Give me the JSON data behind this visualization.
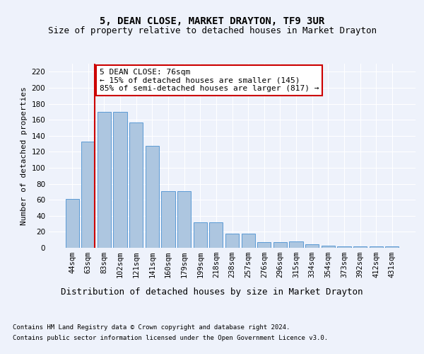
{
  "title": "5, DEAN CLOSE, MARKET DRAYTON, TF9 3UR",
  "subtitle": "Size of property relative to detached houses in Market Drayton",
  "xlabel": "Distribution of detached houses by size in Market Drayton",
  "ylabel": "Number of detached properties",
  "categories": [
    "44sqm",
    "63sqm",
    "83sqm",
    "102sqm",
    "121sqm",
    "141sqm",
    "160sqm",
    "179sqm",
    "199sqm",
    "218sqm",
    "238sqm",
    "257sqm",
    "276sqm",
    "296sqm",
    "315sqm",
    "334sqm",
    "354sqm",
    "373sqm",
    "392sqm",
    "412sqm",
    "431sqm"
  ],
  "values": [
    61,
    133,
    170,
    170,
    157,
    127,
    71,
    71,
    32,
    32,
    18,
    18,
    7,
    7,
    8,
    4,
    3,
    2,
    2,
    2,
    2
  ],
  "bar_color": "#adc6e0",
  "bar_edge_color": "#5b9bd5",
  "vline_color": "#cc0000",
  "annotation_text": "5 DEAN CLOSE: 76sqm\n← 15% of detached houses are smaller (145)\n85% of semi-detached houses are larger (817) →",
  "annotation_box_color": "#ffffff",
  "annotation_box_edge_color": "#cc0000",
  "ylim": [
    0,
    230
  ],
  "yticks": [
    0,
    20,
    40,
    60,
    80,
    100,
    120,
    140,
    160,
    180,
    200,
    220
  ],
  "bg_color": "#eef2fb",
  "plot_bg_color": "#eef2fb",
  "footer_line1": "Contains HM Land Registry data © Crown copyright and database right 2024.",
  "footer_line2": "Contains public sector information licensed under the Open Government Licence v3.0.",
  "title_fontsize": 10,
  "subtitle_fontsize": 9,
  "xlabel_fontsize": 9,
  "ylabel_fontsize": 8,
  "tick_fontsize": 7.5,
  "footer_fontsize": 6.5,
  "annotation_fontsize": 8
}
